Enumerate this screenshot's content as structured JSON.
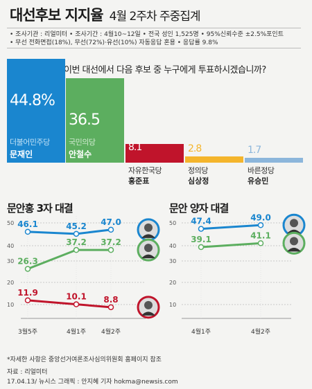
{
  "header": {
    "title_main": "대선후보 지지율",
    "title_sub": "4월 2주차 주중집계"
  },
  "info": {
    "line1": "• 조사기관 : 리얼미터  • 조사기간 : 4월10~12일  • 전국 성인 1,525명  • 95%신뢰수준 ±2.5%포인트",
    "line2": "• 무선 전화면접(18%), 무선(72%)·유선(10%) 자동응답 혼용  • 응답률 9.8%"
  },
  "question": "이번 대선에서 다음 후보 중 누구에게 투표하시겠습니까?",
  "chart_data": [
    {
      "type": "bar",
      "categories": [
        "문재인",
        "안철수",
        "홍준표",
        "심상정",
        "유승민"
      ],
      "parties": [
        "더불어민주당",
        "국민의당",
        "자유한국당",
        "정의당",
        "바른정당"
      ],
      "values": [
        44.8,
        36.5,
        8.1,
        2.8,
        1.7
      ],
      "value_labels": [
        "44.8%",
        "36.5",
        "8.1",
        "2.8",
        "1.7"
      ],
      "colors": [
        "#1a86cf",
        "#5cae5f",
        "#c0142b",
        "#f4b52c",
        "#8cb6db"
      ]
    },
    {
      "type": "line",
      "title": "문안홍 3자 대결",
      "categories": [
        "3월5주",
        "4월1주",
        "4월2주"
      ],
      "yticks": [
        10,
        20,
        30,
        40,
        50
      ],
      "ylim": [
        5,
        52
      ],
      "series": [
        {
          "name": "문재인",
          "values": [
            46.1,
            45.2,
            47.0
          ],
          "labels": [
            "46.1",
            "45.2",
            "47.0"
          ],
          "color": "#1a86cf"
        },
        {
          "name": "안철수",
          "values": [
            26.3,
            37.2,
            37.2
          ],
          "labels": [
            "26.3",
            "37.2",
            "37.2"
          ],
          "color": "#5cae5f"
        },
        {
          "name": "홍준표",
          "values": [
            11.9,
            10.1,
            8.8
          ],
          "labels": [
            "11.9",
            "10.1",
            "8.8"
          ],
          "color": "#c0142b"
        }
      ]
    },
    {
      "type": "line",
      "title": "문안 양자 대결",
      "categories": [
        "4월1주",
        "4월2주"
      ],
      "yticks": [
        10,
        20,
        30,
        40,
        50
      ],
      "ylim": [
        5,
        52
      ],
      "series": [
        {
          "name": "문재인",
          "values": [
            47.4,
            49.0
          ],
          "labels": [
            "47.4",
            "49.0"
          ],
          "color": "#1a86cf"
        },
        {
          "name": "안철수",
          "values": [
            39.1,
            41.1
          ],
          "labels": [
            "39.1",
            "41.1"
          ],
          "color": "#5cae5f"
        }
      ]
    }
  ],
  "footer": {
    "note": "*자세한 사항은 중앙선거여론조사심의위원회 홈페이지 참조",
    "source": "자료 : 리얼미터",
    "credit": "17.04.13/ 뉴시스 그래픽 : 안지혜 기자 hokma@newsis.com"
  }
}
